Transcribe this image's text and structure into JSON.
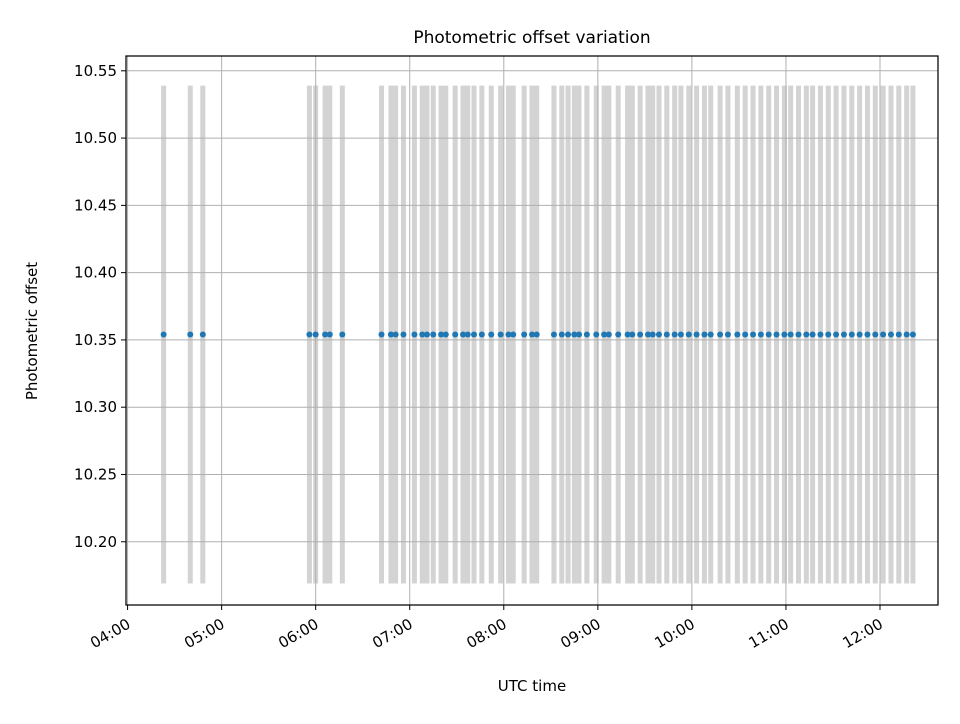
{
  "chart_data": {
    "type": "scatter",
    "title": "Photometric offset variation",
    "xlabel": "UTC time",
    "ylabel": "Photometric offset",
    "x_axis": {
      "kind": "time",
      "xlim": [
        "03:59",
        "12:37"
      ],
      "ticks": [
        "04:00",
        "05:00",
        "06:00",
        "07:00",
        "08:00",
        "09:00",
        "10:00",
        "11:00",
        "12:00"
      ]
    },
    "y_axis": {
      "ylim": [
        10.153,
        10.561
      ],
      "ticks": [
        "10.20",
        "10.25",
        "10.30",
        "10.35",
        "10.40",
        "10.45",
        "10.50",
        "10.55"
      ]
    },
    "grid": true,
    "colors": {
      "points": "#1f77b4",
      "error_bars": "#d3d3d3",
      "grid": "#b0b0b0"
    },
    "series": [
      {
        "value": 10.354,
        "error_range": [
          10.169,
          10.539
        ],
        "x": [
          "04:23",
          "04:40",
          "04:48",
          "05:56",
          "06:00",
          "06:06",
          "06:09",
          "06:17",
          "06:42",
          "06:48",
          "06:51",
          "06:56",
          "07:03",
          "07:08",
          "07:11",
          "07:15",
          "07:20",
          "07:23",
          "07:29",
          "07:34",
          "07:37",
          "07:41",
          "07:46",
          "07:52",
          "07:58",
          "08:03",
          "08:06",
          "08:13",
          "08:18",
          "08:21",
          "08:32",
          "08:37",
          "08:41",
          "08:45",
          "08:48",
          "08:53",
          "08:59",
          "09:04",
          "09:07",
          "09:13",
          "09:19",
          "09:22",
          "09:27",
          "09:32",
          "09:35",
          "09:39",
          "09:44",
          "09:49",
          "09:53",
          "09:58",
          "10:03",
          "10:08",
          "10:12",
          "10:18",
          "10:23",
          "10:29",
          "10:34",
          "10:39",
          "10:44",
          "10:49",
          "10:54",
          "10:59",
          "11:03",
          "11:08",
          "11:13",
          "11:17",
          "11:22",
          "11:27",
          "11:32",
          "11:37",
          "11:42",
          "11:47",
          "11:52",
          "11:57",
          "12:02",
          "12:07",
          "12:12",
          "12:17",
          "12:21"
        ]
      }
    ]
  }
}
